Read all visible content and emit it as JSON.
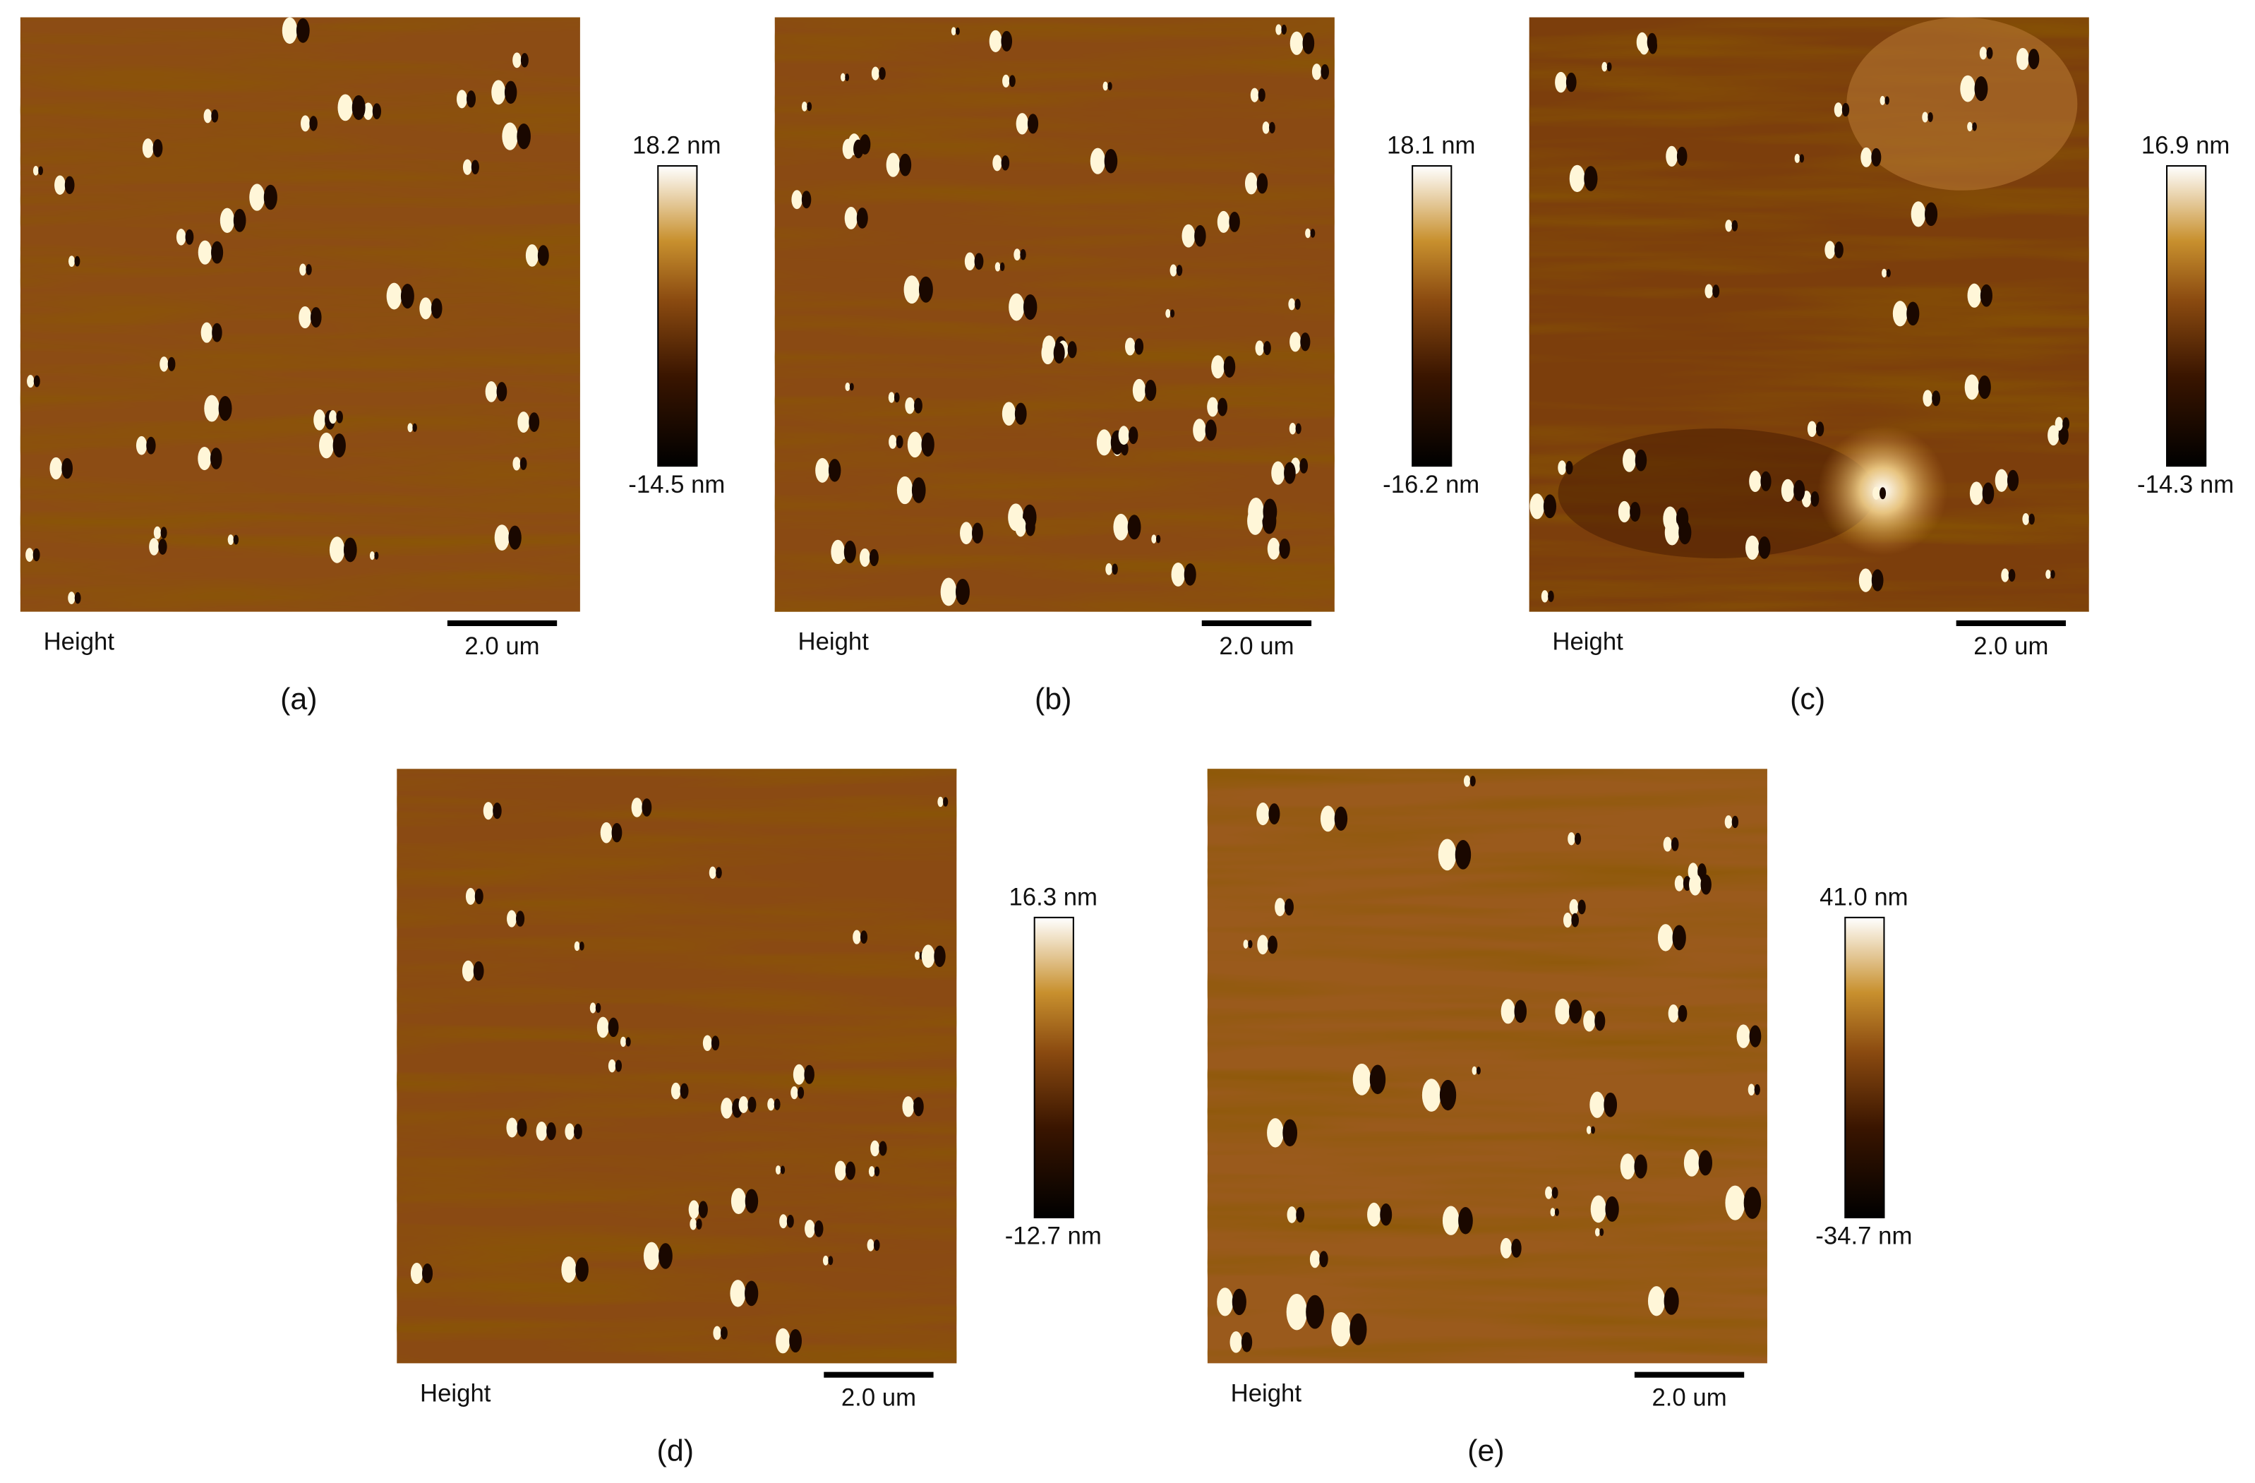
{
  "panels": [
    {
      "caption": "(a)",
      "channel": "Height",
      "scale_bar": "2.0 um",
      "colorbar_max": "18.2 nm",
      "colorbar_min": "-14.5 nm"
    },
    {
      "caption": "(b)",
      "channel": "Height",
      "scale_bar": "2.0 um",
      "colorbar_max": "18.1 nm",
      "colorbar_min": "-16.2 nm"
    },
    {
      "caption": "(c)",
      "channel": "Height",
      "scale_bar": "2.0 um",
      "colorbar_max": "16.9 nm",
      "colorbar_min": "-14.3 nm"
    },
    {
      "caption": "(d)",
      "channel": "Height",
      "scale_bar": "2.0 um",
      "colorbar_max": "16.3 nm",
      "colorbar_min": "-12.7 nm"
    },
    {
      "caption": "(e)",
      "channel": "Height",
      "scale_bar": "2.0 um",
      "colorbar_max": "41.0 nm",
      "colorbar_min": "-34.7 nm"
    }
  ]
}
